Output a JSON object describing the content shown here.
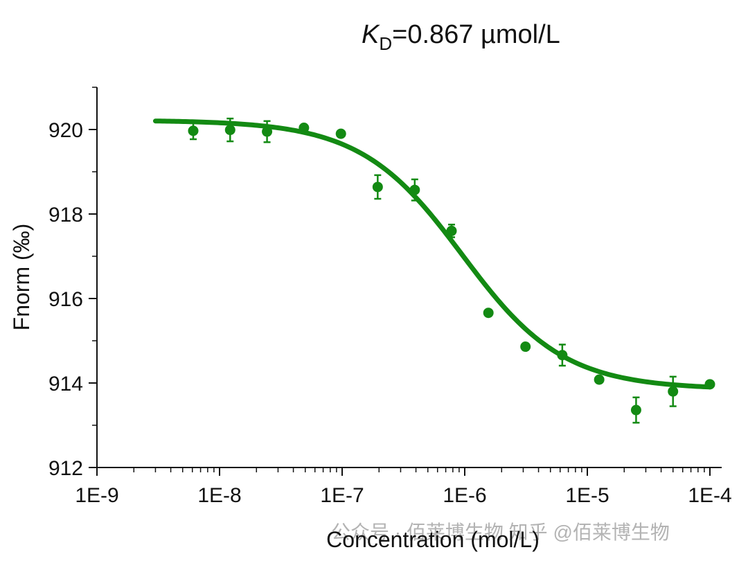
{
  "chart_data": {
    "type": "scatter",
    "title": {
      "main": "K",
      "subscript": "D",
      "rest": "=0.867 µmol/L"
    },
    "xlabel": "Concentration (mol/L)",
    "ylabel": "Fnorm (‰)",
    "xscale": "log",
    "xlim": [
      1e-09,
      0.0001
    ],
    "ylim": [
      912,
      921
    ],
    "xticks": [
      {
        "value": 1e-09,
        "label": "1E-9"
      },
      {
        "value": 1e-08,
        "label": "1E-8"
      },
      {
        "value": 1e-07,
        "label": "1E-7"
      },
      {
        "value": 1e-06,
        "label": "1E-6"
      },
      {
        "value": 1e-05,
        "label": "1E-5"
      },
      {
        "value": 0.0001,
        "label": "1E-4"
      }
    ],
    "yticks": [
      {
        "value": 912,
        "label": "912"
      },
      {
        "value": 914,
        "label": "914"
      },
      {
        "value": 916,
        "label": "916"
      },
      {
        "value": 918,
        "label": "918"
      },
      {
        "value": 920,
        "label": "920"
      }
    ],
    "color": "#138a13",
    "points": [
      {
        "x": 6.1e-09,
        "y": 919.97,
        "err": 0.2
      },
      {
        "x": 1.22e-08,
        "y": 919.99,
        "err": 0.27
      },
      {
        "x": 2.44e-08,
        "y": 919.95,
        "err": 0.25
      },
      {
        "x": 4.88e-08,
        "y": 920.04,
        "err": 0.06
      },
      {
        "x": 9.77e-08,
        "y": 919.9,
        "err": 0.05
      },
      {
        "x": 1.95e-07,
        "y": 918.64,
        "err": 0.28
      },
      {
        "x": 3.91e-07,
        "y": 918.57,
        "err": 0.25
      },
      {
        "x": 7.81e-07,
        "y": 917.6,
        "err": 0.15
      },
      {
        "x": 1.56e-06,
        "y": 915.66,
        "err": 0.05
      },
      {
        "x": 3.13e-06,
        "y": 914.86,
        "err": 0.06
      },
      {
        "x": 6.25e-06,
        "y": 914.66,
        "err": 0.25
      },
      {
        "x": 1.25e-05,
        "y": 914.08,
        "err": 0.07
      },
      {
        "x": 2.5e-05,
        "y": 913.36,
        "err": 0.3
      },
      {
        "x": 5e-05,
        "y": 913.8,
        "err": 0.35
      },
      {
        "x": 0.0001,
        "y": 913.97,
        "err": 0.05
      }
    ],
    "fit": {
      "model": "kd",
      "unbound": 920.22,
      "bound": 913.85,
      "kd": 8.67e-07,
      "x_range": [
        3e-09,
        0.0001
      ]
    },
    "grid": false,
    "legend": "none"
  },
  "watermark": "公众号 · 佰莱博生物  知乎 @佰莱博生物"
}
